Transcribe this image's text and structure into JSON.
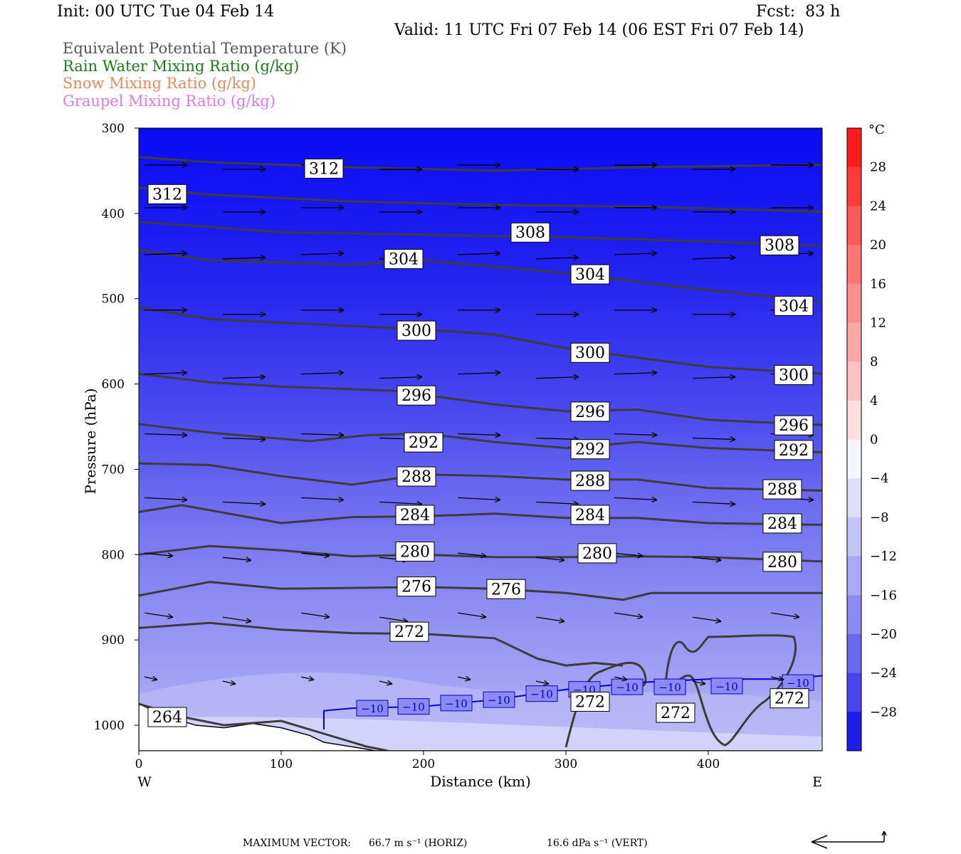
{
  "header": {
    "init": "Init: 00 UTC Tue 04 Feb 14",
    "fcst": "Fcst:  83 h",
    "valid": "Valid: 11 UTC Fri 07 Feb 14 (06 EST Fri 07 Feb 14)"
  },
  "legend": [
    {
      "text": "Equivalent Potential Temperature (K)",
      "color": "#555555"
    },
    {
      "text": "Rain Water Mixing Ratio (g/kg)",
      "color": "#1b7a1b"
    },
    {
      "text": "Snow Mixing Ratio (g/kg)",
      "color": "#e8895a"
    },
    {
      "text": "Graupel Mixing Ratio (g/kg)",
      "color": "#e678e6"
    }
  ],
  "chart_data": {
    "type": "cross-section contour",
    "xlabel": "Distance (km)",
    "ylabel": "Pressure (hPa)",
    "xlim": [
      0,
      480
    ],
    "ylim": [
      300,
      1030
    ],
    "x_ticks": [
      "0",
      "100",
      "200",
      "300",
      "400"
    ],
    "x_tick_values": [
      0,
      100,
      200,
      300,
      400
    ],
    "y_ticks": [
      "300",
      "400",
      "500",
      "600",
      "700",
      "800",
      "900",
      "1000"
    ],
    "y_tick_values": [
      300,
      400,
      500,
      600,
      700,
      800,
      900,
      1000
    ],
    "left_end_label": "W",
    "right_end_label": "E",
    "colorbar": {
      "unit": "°C",
      "ticks": [
        "28",
        "24",
        "20",
        "16",
        "12",
        "8",
        "4",
        "0",
        "−4",
        "−8",
        "−12",
        "−16",
        "−20",
        "−24",
        "−28"
      ],
      "tick_values": [
        28,
        24,
        20,
        16,
        12,
        8,
        4,
        0,
        -4,
        -8,
        -12,
        -16,
        -20,
        -24,
        -28
      ],
      "range": [
        -32,
        32
      ]
    },
    "theta_e_contours": [
      {
        "label": "312",
        "points": [
          [
            0,
            334
          ],
          [
            50,
            340
          ],
          [
            150,
            346
          ],
          [
            250,
            350
          ],
          [
            350,
            346
          ],
          [
            480,
            343
          ]
        ]
      },
      {
        "label": "312",
        "points": [
          [
            0,
            370
          ],
          [
            50,
            378
          ],
          [
            150,
            386
          ],
          [
            250,
            390
          ],
          [
            350,
            392
          ],
          [
            480,
            398
          ]
        ]
      },
      {
        "label": "308",
        "points": [
          [
            0,
            410
          ],
          [
            100,
            422
          ],
          [
            200,
            425
          ],
          [
            300,
            428
          ],
          [
            400,
            433
          ],
          [
            480,
            438
          ]
        ]
      },
      {
        "label": "304",
        "points": [
          [
            0,
            443
          ],
          [
            50,
            455
          ],
          [
            150,
            460
          ],
          [
            200,
            455
          ],
          [
            300,
            470
          ],
          [
            400,
            490
          ],
          [
            480,
            503
          ]
        ]
      },
      {
        "label": "300",
        "points": [
          [
            0,
            510
          ],
          [
            50,
            524
          ],
          [
            150,
            532
          ],
          [
            200,
            536
          ],
          [
            250,
            542
          ],
          [
            300,
            558
          ],
          [
            400,
            580
          ],
          [
            480,
            588
          ]
        ]
      },
      {
        "label": "296",
        "points": [
          [
            0,
            588
          ],
          [
            50,
            598
          ],
          [
            100,
            603
          ],
          [
            180,
            608
          ],
          [
            250,
            624
          ],
          [
            300,
            632
          ],
          [
            350,
            630
          ],
          [
            400,
            642
          ],
          [
            480,
            648
          ]
        ]
      },
      {
        "label": "292",
        "points": [
          [
            0,
            647
          ],
          [
            50,
            657
          ],
          [
            120,
            667
          ],
          [
            160,
            660
          ],
          [
            200,
            658
          ],
          [
            250,
            668
          ],
          [
            300,
            675
          ],
          [
            350,
            668
          ],
          [
            400,
            675
          ],
          [
            480,
            680
          ]
        ]
      },
      {
        "label": "288",
        "points": [
          [
            0,
            693
          ],
          [
            50,
            695
          ],
          [
            100,
            708
          ],
          [
            150,
            718
          ],
          [
            200,
            706
          ],
          [
            250,
            708
          ],
          [
            300,
            712
          ],
          [
            350,
            712
          ],
          [
            400,
            722
          ],
          [
            480,
            725
          ]
        ]
      },
      {
        "label": "284",
        "points": [
          [
            0,
            750
          ],
          [
            30,
            742
          ],
          [
            100,
            763
          ],
          [
            150,
            756
          ],
          [
            200,
            755
          ],
          [
            250,
            752
          ],
          [
            300,
            757
          ],
          [
            350,
            757
          ],
          [
            400,
            763
          ],
          [
            480,
            765
          ]
        ]
      },
      {
        "label": "280",
        "points": [
          [
            0,
            800
          ],
          [
            50,
            790
          ],
          [
            100,
            795
          ],
          [
            150,
            802
          ],
          [
            200,
            800
          ],
          [
            250,
            803
          ],
          [
            300,
            803
          ],
          [
            350,
            802
          ],
          [
            400,
            803
          ],
          [
            480,
            808
          ]
        ]
      },
      {
        "label": "276",
        "points": [
          [
            0,
            848
          ],
          [
            50,
            832
          ],
          [
            100,
            840
          ],
          [
            150,
            839
          ],
          [
            200,
            838
          ],
          [
            250,
            840
          ],
          [
            300,
            845
          ],
          [
            340,
            853
          ],
          [
            360,
            845
          ],
          [
            400,
            845
          ],
          [
            480,
            845
          ]
        ]
      },
      {
        "label": "272",
        "points": [
          [
            0,
            886
          ],
          [
            50,
            880
          ],
          [
            100,
            888
          ],
          [
            150,
            892
          ],
          [
            200,
            893
          ],
          [
            250,
            898
          ],
          [
            280,
            922
          ],
          [
            300,
            930
          ],
          [
            320,
            927
          ],
          [
            340,
            930
          ]
        ]
      },
      {
        "label": "264",
        "points": [
          [
            0,
            975
          ],
          [
            30,
            990
          ],
          [
            60,
            1000
          ],
          [
            100,
            995
          ],
          [
            130,
            1010
          ],
          [
            160,
            1025
          ],
          [
            175,
            1030
          ]
        ]
      }
    ],
    "isotherm_minus10": {
      "label": "−10",
      "points": [
        [
          130,
          1005
        ],
        [
          130,
          983
        ],
        [
          150,
          980
        ],
        [
          200,
          978
        ],
        [
          250,
          970
        ],
        [
          300,
          958
        ],
        [
          350,
          950
        ],
        [
          400,
          946
        ],
        [
          450,
          946
        ],
        [
          480,
          942
        ]
      ]
    },
    "max_vector_horiz": "66.7 m s⁻¹ (HORIZ)",
    "max_vector_vert": "16.6 dPa s⁻¹ (VERT)"
  },
  "footer": {
    "label": "MAXIMUM VECTOR:",
    "horiz": "66.7 m s⁻¹ (HORIZ)",
    "vert": "16.6 dPa s⁻¹ (VERT)"
  }
}
